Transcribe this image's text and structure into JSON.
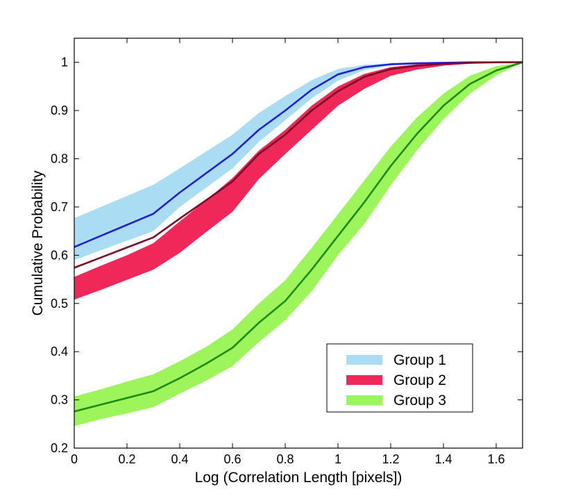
{
  "chart_data": {
    "type": "area",
    "title": "",
    "xlabel": "Log (Correlation Length [pixels])",
    "ylabel": "Cumulative Probability",
    "xlim": [
      0,
      1.7
    ],
    "ylim": [
      0.2,
      1.05
    ],
    "xticks": [
      0,
      0.2,
      0.4,
      0.6,
      0.8,
      1,
      1.2,
      1.4,
      1.6
    ],
    "xtick_labels": [
      "0",
      "0.2",
      "0.4",
      "0.6",
      "0.8",
      "1",
      "1.2",
      "1.4",
      "1.6"
    ],
    "yticks": [
      0.2,
      0.3,
      0.4,
      0.5,
      0.6,
      0.7,
      0.8,
      0.9,
      1
    ],
    "ytick_labels": [
      "0.2",
      "0.3",
      "0.4",
      "0.5",
      "0.6",
      "0.7",
      "0.8",
      "0.9",
      "1"
    ],
    "legend_position": "lower-right",
    "grid": false,
    "series": [
      {
        "name": "Group 1",
        "band_color": "#aadcf4",
        "line_color": "#2020d0",
        "x": [
          0,
          0.1,
          0.2,
          0.3,
          0.4,
          0.5,
          0.6,
          0.7,
          0.8,
          0.9,
          1.0,
          1.1,
          1.2,
          1.3,
          1.4,
          1.5,
          1.6,
          1.7
        ],
        "mean": [
          0.617,
          0.64,
          0.663,
          0.686,
          0.73,
          0.77,
          0.81,
          0.86,
          0.9,
          0.943,
          0.975,
          0.99,
          0.996,
          0.998,
          0.999,
          1.0,
          1.0,
          1.0
        ],
        "lower": [
          0.59,
          0.61,
          0.63,
          0.65,
          0.7,
          0.74,
          0.78,
          0.835,
          0.88,
          0.925,
          0.962,
          0.984,
          0.993,
          0.996,
          0.998,
          0.999,
          1.0,
          1.0
        ],
        "upper": [
          0.677,
          0.7,
          0.723,
          0.746,
          0.78,
          0.815,
          0.85,
          0.895,
          0.93,
          0.963,
          0.986,
          0.995,
          0.998,
          0.999,
          1.0,
          1.0,
          1.0,
          1.0
        ]
      },
      {
        "name": "Group 2",
        "band_color": "#f0285a",
        "line_color": "#7a0a28",
        "x": [
          0,
          0.1,
          0.2,
          0.3,
          0.4,
          0.5,
          0.6,
          0.7,
          0.8,
          0.9,
          1.0,
          1.1,
          1.2,
          1.3,
          1.4,
          1.5,
          1.6,
          1.7
        ],
        "mean": [
          0.574,
          0.595,
          0.616,
          0.637,
          0.676,
          0.714,
          0.753,
          0.81,
          0.85,
          0.9,
          0.94,
          0.97,
          0.986,
          0.993,
          0.997,
          0.999,
          1.0,
          1.0
        ],
        "lower": [
          0.508,
          0.528,
          0.549,
          0.57,
          0.605,
          0.648,
          0.69,
          0.758,
          0.81,
          0.86,
          0.91,
          0.945,
          0.972,
          0.985,
          0.993,
          0.997,
          0.999,
          1.0
        ],
        "upper": [
          0.555,
          0.578,
          0.6,
          0.625,
          0.67,
          0.714,
          0.76,
          0.817,
          0.86,
          0.91,
          0.95,
          0.976,
          0.99,
          0.996,
          0.998,
          0.999,
          1.0,
          1.0
        ]
      },
      {
        "name": "Group 3",
        "band_color": "#9cf55a",
        "line_color": "#1f8a12",
        "x": [
          0,
          0.1,
          0.2,
          0.3,
          0.4,
          0.5,
          0.6,
          0.7,
          0.8,
          0.9,
          1.0,
          1.1,
          1.2,
          1.3,
          1.4,
          1.5,
          1.6,
          1.7
        ],
        "mean": [
          0.276,
          0.29,
          0.304,
          0.318,
          0.345,
          0.375,
          0.408,
          0.46,
          0.505,
          0.57,
          0.64,
          0.71,
          0.785,
          0.852,
          0.91,
          0.955,
          0.983,
          1.0
        ],
        "lower": [
          0.246,
          0.26,
          0.272,
          0.285,
          0.313,
          0.34,
          0.37,
          0.42,
          0.465,
          0.525,
          0.6,
          0.665,
          0.745,
          0.818,
          0.882,
          0.935,
          0.973,
          1.0
        ],
        "upper": [
          0.307,
          0.322,
          0.338,
          0.353,
          0.38,
          0.41,
          0.446,
          0.5,
          0.548,
          0.615,
          0.685,
          0.755,
          0.825,
          0.886,
          0.935,
          0.972,
          0.992,
          1.0
        ]
      }
    ],
    "overlap_colors": {
      "group1_group2": "#6b5af5"
    }
  }
}
